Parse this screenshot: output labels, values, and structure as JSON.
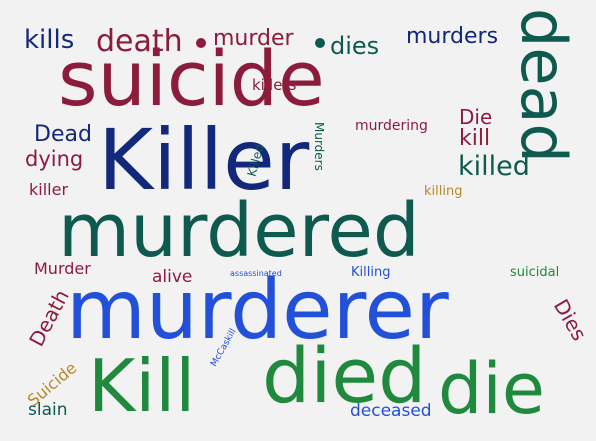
{
  "colors": {
    "background": "#f2f2f2",
    "navy": "#13287a",
    "crimson": "#8c1c3c",
    "teal": "#0f5a4e",
    "blue": "#2250d8",
    "green": "#1f8a3e",
    "gold": "#b8892a",
    "sky": "#1f8fb5"
  },
  "words": [
    {
      "text": "kills",
      "color": "navy"
    },
    {
      "text": "death",
      "color": "crimson"
    },
    {
      "text": "murder",
      "color": "crimson"
    },
    {
      "text": "dies",
      "color": "teal"
    },
    {
      "text": "murders",
      "color": "navy"
    },
    {
      "text": "dead",
      "color": "teal"
    },
    {
      "text": "suicide",
      "color": "crimson"
    },
    {
      "text": "killers",
      "color": "crimson"
    },
    {
      "text": "Dead",
      "color": "navy"
    },
    {
      "text": "dying",
      "color": "crimson"
    },
    {
      "text": "killer",
      "color": "crimson"
    },
    {
      "text": "Killer",
      "color": "navy"
    },
    {
      "text": "Killed",
      "color": "teal"
    },
    {
      "text": "Murders",
      "color": "teal"
    },
    {
      "text": "murdering",
      "color": "crimson"
    },
    {
      "text": "Die",
      "color": "crimson"
    },
    {
      "text": "kill",
      "color": "crimson"
    },
    {
      "text": "killed",
      "color": "teal"
    },
    {
      "text": "killing",
      "color": "gold"
    },
    {
      "text": "murdered",
      "color": "teal"
    },
    {
      "text": "Murder",
      "color": "crimson"
    },
    {
      "text": "alive",
      "color": "crimson"
    },
    {
      "text": "assassinated",
      "color": "blue"
    },
    {
      "text": "Killing",
      "color": "blue"
    },
    {
      "text": "suicidal",
      "color": "green"
    },
    {
      "text": "Death",
      "color": "crimson"
    },
    {
      "text": "murderer",
      "color": "blue"
    },
    {
      "text": "McCaskill",
      "color": "blue"
    },
    {
      "text": "Dies",
      "color": "crimson"
    },
    {
      "text": "Suicide",
      "color": "gold"
    },
    {
      "text": "Kill",
      "color": "green"
    },
    {
      "text": "died",
      "color": "green"
    },
    {
      "text": "die",
      "color": "green"
    },
    {
      "text": "slain",
      "color": "teal"
    },
    {
      "text": "deceased",
      "color": "blue"
    }
  ]
}
